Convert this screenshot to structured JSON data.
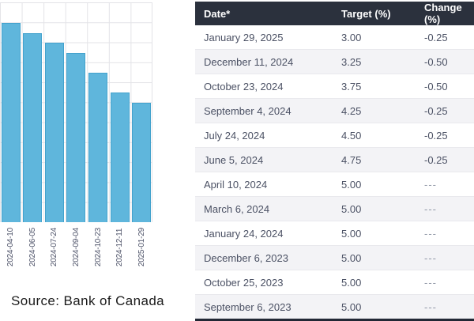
{
  "source_note": "Source: Bank of Canada",
  "colors": {
    "bar_fill": "#5fb6dc",
    "bar_border": "#43a2cd",
    "grid_line": "#e3e3e7",
    "table_header_bg": "#2b313d",
    "table_header_text": "#ffffff",
    "table_row_alt_bg": "#f3f3f6",
    "table_text": "#4b5164",
    "table_bottom_border": "#222835"
  },
  "chart_data": {
    "type": "bar",
    "categories": [
      "2024-04-10",
      "2024-06-05",
      "2024-07-24",
      "2024-09-04",
      "2024-10-23",
      "2024-12-11",
      "2025-01-29"
    ],
    "values": [
      5.0,
      4.75,
      4.5,
      4.25,
      3.75,
      3.25,
      3.0
    ],
    "title": "",
    "xlabel": "",
    "ylabel": "",
    "ylim": [
      0,
      5.5
    ],
    "gridline_step": 0.5,
    "grid": true,
    "legend": "none",
    "y_axis_tick_labels_visible": false,
    "x_tick_label_rotation": 90
  },
  "table": {
    "columns": [
      "Date*",
      "Target (%)",
      "Change (%)"
    ],
    "rows": [
      [
        "January 29, 2025",
        "3.00",
        "-0.25"
      ],
      [
        "December 11, 2024",
        "3.25",
        "-0.50"
      ],
      [
        "October 23, 2024",
        "3.75",
        "-0.50"
      ],
      [
        "September 4, 2024",
        "4.25",
        "-0.25"
      ],
      [
        "July 24, 2024",
        "4.50",
        "-0.25"
      ],
      [
        "June 5, 2024",
        "4.75",
        "-0.25"
      ],
      [
        "April 10, 2024",
        "5.00",
        "---"
      ],
      [
        "March 6, 2024",
        "5.00",
        "---"
      ],
      [
        "January 24, 2024",
        "5.00",
        "---"
      ],
      [
        "December 6, 2023",
        "5.00",
        "---"
      ],
      [
        "October 25, 2023",
        "5.00",
        "---"
      ],
      [
        "September 6, 2023",
        "5.00",
        "---"
      ]
    ]
  }
}
